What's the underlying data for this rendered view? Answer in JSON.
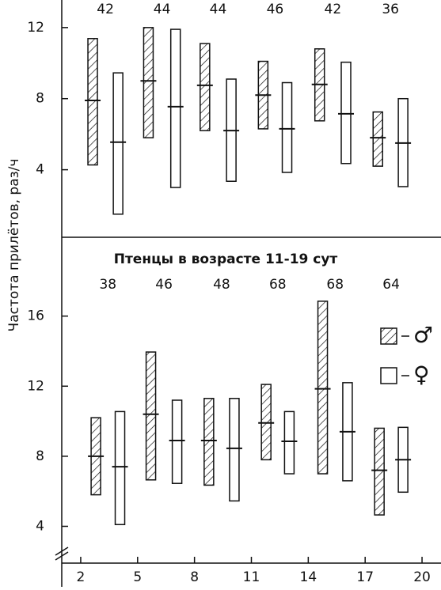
{
  "chart_data": [
    {
      "type": "range",
      "ylabel": "Частота прилётов, раз/ч",
      "xlim": [
        1,
        21
      ],
      "ylim": [
        0.2,
        13.55
      ],
      "yticks": [
        4,
        8,
        12
      ],
      "counts": [
        42,
        44,
        44,
        46,
        42,
        36
      ],
      "series": [
        {
          "name": "♂",
          "hatch": true,
          "x": [
            2.63,
            5.57,
            8.55,
            11.62,
            14.6,
            17.67
          ],
          "low": [
            4.27,
            5.8,
            6.2,
            6.3,
            6.75,
            4.2
          ],
          "high": [
            11.38,
            12.0,
            11.1,
            10.1,
            10.8,
            7.25
          ],
          "mean": [
            7.9,
            9.0,
            8.75,
            8.2,
            8.8,
            5.8
          ]
        },
        {
          "name": "♀",
          "hatch": false,
          "x": [
            3.97,
            7.0,
            9.94,
            12.88,
            15.99,
            19.0
          ],
          "low": [
            1.5,
            3.0,
            3.35,
            3.85,
            4.35,
            3.05
          ],
          "high": [
            9.45,
            11.9,
            9.1,
            8.9,
            10.05,
            8.0
          ],
          "mean": [
            5.55,
            7.55,
            6.2,
            6.3,
            7.15,
            5.5
          ]
        }
      ]
    },
    {
      "type": "range",
      "title": "Птенцы в возрасте 11-19 сут",
      "xlim": [
        1,
        21
      ],
      "ylim": [
        1.9,
        20.5
      ],
      "yticks": [
        4,
        8,
        12,
        16
      ],
      "xticks": [
        2,
        5,
        8,
        11,
        14,
        17,
        20
      ],
      "counts": [
        38,
        46,
        48,
        68,
        68,
        64
      ],
      "series": [
        {
          "name": "♂",
          "hatch": true,
          "x": [
            2.8,
            5.7,
            8.76,
            11.78,
            14.76,
            17.75
          ],
          "low": [
            5.8,
            6.65,
            6.35,
            7.8,
            7.0,
            4.65
          ],
          "high": [
            10.2,
            13.95,
            11.3,
            12.1,
            16.85,
            9.6
          ],
          "mean": [
            8.0,
            10.4,
            8.9,
            9.9,
            11.85,
            7.2
          ]
        },
        {
          "name": "♀",
          "hatch": false,
          "x": [
            4.07,
            7.08,
            10.1,
            13.0,
            16.07,
            19.0
          ],
          "low": [
            4.1,
            6.45,
            5.45,
            7.0,
            6.6,
            5.95
          ],
          "high": [
            10.55,
            11.2,
            11.3,
            10.55,
            12.2,
            9.65
          ],
          "mean": [
            7.4,
            8.9,
            8.45,
            8.85,
            9.4,
            7.8
          ]
        }
      ]
    }
  ]
}
